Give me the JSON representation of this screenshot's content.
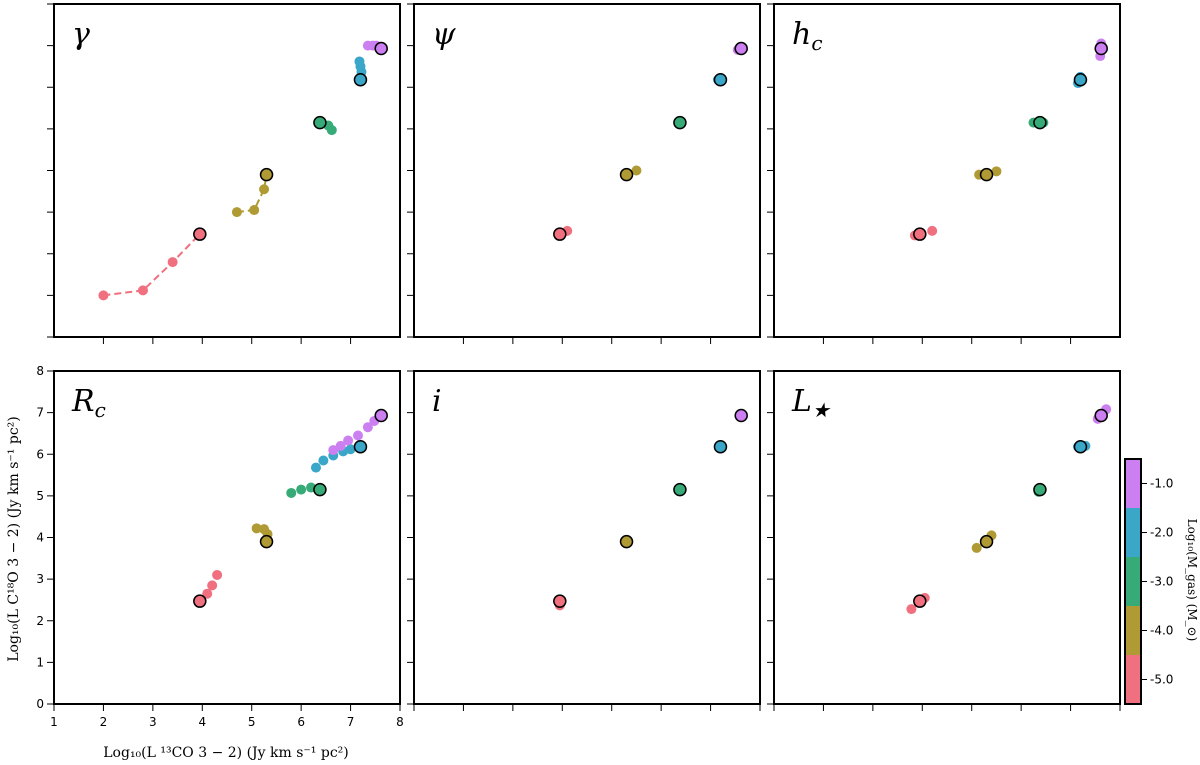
{
  "chart_data": {
    "type": "scatter",
    "xlabel": "Log₁₀(L ¹³CO 3 − 2) (Jy km s⁻¹ pc²)",
    "ylabel": "Log₁₀(L C¹⁸O 3 − 2) (Jy km s⁻¹ pc²)",
    "xlim": [
      1,
      8
    ],
    "ylim": [
      0,
      8
    ],
    "x_ticks": [
      "1",
      "2",
      "3",
      "4",
      "5",
      "6",
      "7",
      "8"
    ],
    "y_ticks": [
      "0",
      "1",
      "2",
      "3",
      "4",
      "5",
      "6",
      "7",
      "8"
    ],
    "colorbar": {
      "label": "Log₁₀(M_gas) (M_⊙)",
      "ticks": [
        "-5.0",
        "-4.0",
        "-3.0",
        "-2.0",
        "-1.0"
      ],
      "colors": [
        "#f0707f",
        "#b09a33",
        "#36ab78",
        "#3aa6c8",
        "#cc7ff0"
      ]
    },
    "baseline": [
      {
        "mass": "-5.0",
        "x": 3.95,
        "y": 2.47
      },
      {
        "mass": "-4.0",
        "x": 5.3,
        "y": 3.9
      },
      {
        "mass": "-3.0",
        "x": 6.38,
        "y": 5.15
      },
      {
        "mass": "-2.0",
        "x": 7.2,
        "y": 6.18
      },
      {
        "mass": "-1.0",
        "x": 7.62,
        "y": 6.93
      }
    ],
    "panels": [
      {
        "label": "γ",
        "series": [
          {
            "mass": "-5.0",
            "points": [
              [
                2.0,
                1.0
              ],
              [
                2.8,
                1.12
              ],
              [
                3.4,
                1.8
              ]
            ]
          },
          {
            "mass": "-4.0",
            "points": [
              [
                4.7,
                3.0
              ],
              [
                5.05,
                3.05
              ],
              [
                5.25,
                3.55
              ]
            ]
          },
          {
            "mass": "-3.0",
            "points": [
              [
                6.55,
                5.08
              ],
              [
                6.62,
                4.97
              ]
            ]
          },
          {
            "mass": "-2.0",
            "points": [
              [
                7.22,
                6.37
              ],
              [
                7.2,
                6.5
              ],
              [
                7.18,
                6.62
              ]
            ]
          },
          {
            "mass": "-1.0",
            "points": [
              [
                7.35,
                7.0
              ],
              [
                7.45,
                7.0
              ],
              [
                7.52,
                7.0
              ]
            ]
          }
        ]
      },
      {
        "label": "ψ",
        "series": [
          {
            "mass": "-5.0",
            "points": [
              [
                4.1,
                2.55
              ]
            ]
          },
          {
            "mass": "-4.0",
            "points": [
              [
                5.5,
                4.0
              ]
            ]
          },
          {
            "mass": "-3.0",
            "points": []
          },
          {
            "mass": "-2.0",
            "points": [
              [
                7.15,
                6.18
              ]
            ]
          },
          {
            "mass": "-1.0",
            "points": [
              [
                7.55,
                6.9
              ]
            ]
          }
        ]
      },
      {
        "label": "h_c",
        "series": [
          {
            "mass": "-5.0",
            "points": [
              [
                3.85,
                2.44
              ],
              [
                4.2,
                2.55
              ]
            ]
          },
          {
            "mass": "-4.0",
            "points": [
              [
                5.15,
                3.9
              ],
              [
                5.5,
                3.98
              ]
            ]
          },
          {
            "mass": "-3.0",
            "points": [
              [
                6.25,
                5.15
              ],
              [
                6.45,
                5.15
              ]
            ]
          },
          {
            "mass": "-2.0",
            "points": [
              [
                7.15,
                6.1
              ],
              [
                7.2,
                6.25
              ]
            ]
          },
          {
            "mass": "-1.0",
            "points": [
              [
                7.6,
                6.75
              ],
              [
                7.62,
                7.05
              ]
            ]
          }
        ]
      },
      {
        "label": "R_c",
        "series": [
          {
            "mass": "-5.0",
            "points": [
              [
                4.1,
                2.65
              ],
              [
                4.2,
                2.85
              ],
              [
                4.3,
                3.1
              ]
            ]
          },
          {
            "mass": "-4.0",
            "points": [
              [
                5.1,
                4.22
              ],
              [
                5.25,
                4.2
              ],
              [
                5.32,
                4.08
              ]
            ]
          },
          {
            "mass": "-3.0",
            "points": [
              [
                5.8,
                5.07
              ],
              [
                6.0,
                5.15
              ],
              [
                6.2,
                5.2
              ]
            ]
          },
          {
            "mass": "-2.0",
            "points": [
              [
                6.3,
                5.68
              ],
              [
                6.45,
                5.85
              ],
              [
                6.65,
                5.97
              ],
              [
                6.85,
                6.07
              ],
              [
                7.0,
                6.12
              ]
            ]
          },
          {
            "mass": "-1.0",
            "points": [
              [
                6.65,
                6.1
              ],
              [
                6.8,
                6.2
              ],
              [
                6.95,
                6.33
              ],
              [
                7.15,
                6.45
              ],
              [
                7.35,
                6.65
              ],
              [
                7.48,
                6.8
              ]
            ]
          }
        ]
      },
      {
        "label": "i",
        "series": [
          {
            "mass": "-5.0",
            "points": [
              [
                3.95,
                2.37
              ]
            ]
          },
          {
            "mass": "-4.0",
            "points": []
          },
          {
            "mass": "-3.0",
            "points": []
          },
          {
            "mass": "-2.0",
            "points": []
          },
          {
            "mass": "-1.0",
            "points": []
          }
        ]
      },
      {
        "label": "L_★",
        "series": [
          {
            "mass": "-5.0",
            "points": [
              [
                3.78,
                2.28
              ],
              [
                4.05,
                2.55
              ]
            ]
          },
          {
            "mass": "-4.0",
            "points": [
              [
                5.1,
                3.75
              ],
              [
                5.4,
                4.05
              ]
            ]
          },
          {
            "mass": "-3.0",
            "points": [
              [
                6.35,
                5.1
              ]
            ]
          },
          {
            "mass": "-2.0",
            "points": [
              [
                7.15,
                6.18
              ],
              [
                7.3,
                6.2
              ]
            ]
          },
          {
            "mass": "-1.0",
            "points": [
              [
                7.55,
                6.85
              ],
              [
                7.72,
                7.08
              ]
            ]
          }
        ]
      }
    ]
  }
}
